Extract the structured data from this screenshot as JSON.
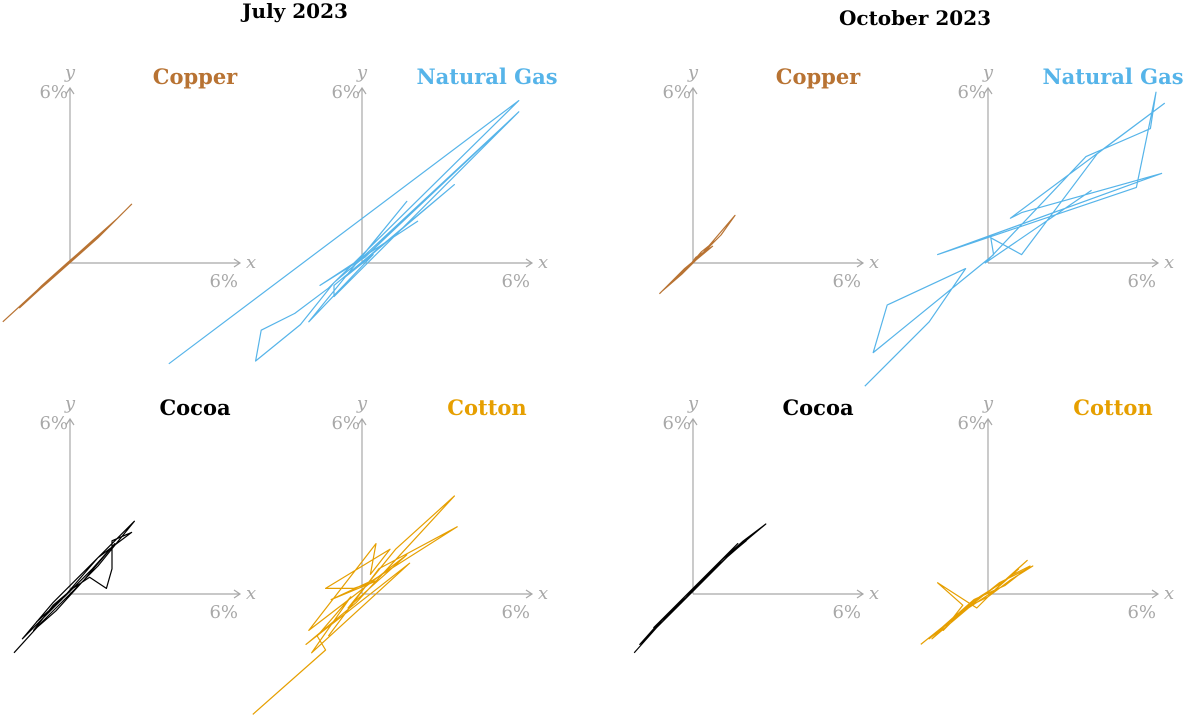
{
  "panels": [
    {
      "title": "July 2023",
      "charts": [
        {
          "type": "line",
          "series_name": "Copper",
          "color": "#b87333",
          "xlabel": "x",
          "ylabel": "y",
          "x_tick": "6%",
          "y_tick": "6%",
          "x_tick_value": 6,
          "y_tick_value": 6,
          "points": [
            [
              -2.4,
              -2.1
            ],
            [
              -1.2,
              -1.0
            ],
            [
              -0.3,
              -0.2
            ],
            [
              0.5,
              0.5
            ],
            [
              1.4,
              1.3
            ],
            [
              2.2,
              2.1
            ],
            [
              1.6,
              1.5
            ],
            [
              0.7,
              0.7
            ],
            [
              -0.1,
              0.0
            ],
            [
              -1.0,
              -0.8
            ],
            [
              -1.8,
              -1.6
            ],
            [
              -0.6,
              -0.5
            ],
            [
              0.3,
              0.3
            ],
            [
              1.1,
              1.0
            ],
            [
              1.9,
              1.8
            ],
            [
              1.0,
              0.9
            ],
            [
              0.1,
              0.1
            ],
            [
              -0.8,
              -0.7
            ],
            [
              -1.5,
              -1.3
            ],
            [
              -0.2,
              -0.1
            ],
            [
              0.8,
              0.8
            ],
            [
              1.7,
              1.6
            ],
            [
              0.6,
              0.6
            ],
            [
              -0.4,
              -0.3
            ]
          ]
        },
        {
          "type": "line",
          "series_name": "Natural Gas",
          "color": "#56b4e9",
          "xlabel": "x",
          "ylabel": "y",
          "x_tick": "6%",
          "y_tick": "6%",
          "x_tick_value": 6,
          "y_tick_value": 6,
          "points": [
            [
              -6.9,
              -3.6
            ],
            [
              5.6,
              5.8
            ],
            [
              -1.2,
              -0.9
            ],
            [
              -2.4,
              -1.8
            ],
            [
              -3.6,
              -2.4
            ],
            [
              -3.8,
              -3.5
            ],
            [
              -2.2,
              -2.2
            ],
            [
              -1.0,
              -0.7
            ],
            [
              0.3,
              0.4
            ],
            [
              5.6,
              5.4
            ],
            [
              -1.0,
              -1.2
            ],
            [
              -1.0,
              -0.8
            ],
            [
              3.3,
              2.8
            ],
            [
              -0.6,
              -0.5
            ],
            [
              0.4,
              0.3
            ],
            [
              -1.9,
              -2.1
            ],
            [
              1.6,
              2.2
            ],
            [
              -0.2,
              0.0
            ],
            [
              5.5,
              5.3
            ],
            [
              0.1,
              0.2
            ],
            [
              -1.5,
              -0.8
            ],
            [
              2.0,
              1.5
            ]
          ]
        },
        {
          "type": "line",
          "series_name": "Cocoa",
          "color": "#000000",
          "xlabel": "x",
          "ylabel": "y",
          "x_tick": "6%",
          "y_tick": "6%",
          "x_tick_value": 6,
          "y_tick_value": 6,
          "points": [
            [
              -2.0,
              -2.1
            ],
            [
              -1.0,
              -1.0
            ],
            [
              0.0,
              0.0
            ],
            [
              1.0,
              1.0
            ],
            [
              2.3,
              2.6
            ],
            [
              0.9,
              1.2
            ],
            [
              -0.6,
              -0.3
            ],
            [
              -1.7,
              -1.6
            ],
            [
              -0.3,
              -0.2
            ],
            [
              1.0,
              1.3
            ],
            [
              2.2,
              2.2
            ],
            [
              1.5,
              1.9
            ],
            [
              1.5,
              0.9
            ],
            [
              1.3,
              0.2
            ],
            [
              0.7,
              0.6
            ],
            [
              0.1,
              0.2
            ],
            [
              -0.6,
              -0.4
            ],
            [
              -1.3,
              -1.3
            ],
            [
              -0.5,
              -0.6
            ],
            [
              0.5,
              0.5
            ],
            [
              1.6,
              1.8
            ],
            [
              0.8,
              0.9
            ],
            [
              -0.2,
              -0.1
            ],
            [
              -1.2,
              -1.0
            ]
          ]
        },
        {
          "type": "line",
          "series_name": "Cotton",
          "color": "#e69f00",
          "xlabel": "x",
          "ylabel": "y",
          "x_tick": "6%",
          "y_tick": "6%",
          "x_tick_value": 6,
          "y_tick_value": 6,
          "points": [
            [
              -3.9,
              -4.3
            ],
            [
              -1.3,
              -2.0
            ],
            [
              -1.6,
              -1.5
            ],
            [
              -0.4,
              -0.1
            ],
            [
              -1.8,
              -2.1
            ],
            [
              1.7,
              1.1
            ],
            [
              -2.0,
              -1.8
            ],
            [
              -0.2,
              -0.3
            ],
            [
              3.3,
              3.5
            ],
            [
              1.2,
              1.6
            ],
            [
              -0.5,
              -0.5
            ],
            [
              -0.4,
              -0.4
            ],
            [
              1.6,
              1.4
            ],
            [
              -0.6,
              -0.3
            ],
            [
              -1.9,
              -1.3
            ],
            [
              0.5,
              1.8
            ],
            [
              0.3,
              0.7
            ],
            [
              1.0,
              1.6
            ],
            [
              -1.3,
              0.2
            ],
            [
              -0.3,
              0.2
            ],
            [
              0.6,
              0.5
            ],
            [
              -1.1,
              -0.2
            ],
            [
              0.4,
              0.5
            ],
            [
              3.4,
              2.4
            ],
            [
              0.6,
              0.9
            ],
            [
              -1.2,
              -1.5
            ]
          ]
        }
      ]
    },
    {
      "title": "October 2023",
      "charts": [
        {
          "type": "line",
          "series_name": "Copper",
          "color": "#b87333",
          "xlabel": "x",
          "ylabel": "y",
          "x_tick": "6%",
          "y_tick": "6%",
          "x_tick_value": 6,
          "y_tick_value": 6,
          "points": [
            [
              -1.2,
              -1.1
            ],
            [
              -0.6,
              -0.5
            ],
            [
              0.0,
              0.0
            ],
            [
              0.6,
              0.6
            ],
            [
              1.0,
              1.0
            ],
            [
              1.5,
              1.7
            ],
            [
              0.9,
              1.0
            ],
            [
              0.3,
              0.3
            ],
            [
              -0.3,
              -0.2
            ],
            [
              -0.9,
              -0.8
            ],
            [
              -0.3,
              -0.3
            ],
            [
              0.3,
              0.4
            ],
            [
              0.8,
              0.8
            ],
            [
              0.2,
              0.2
            ],
            [
              -0.4,
              -0.4
            ],
            [
              -1.1,
              -1.0
            ],
            [
              -0.5,
              -0.4
            ],
            [
              0.1,
              0.1
            ],
            [
              0.7,
              0.6
            ],
            [
              0.1,
              0.2
            ],
            [
              -0.2,
              -0.2
            ]
          ]
        },
        {
          "type": "line",
          "series_name": "Natural Gas",
          "color": "#56b4e9",
          "xlabel": "x",
          "ylabel": "y",
          "x_tick": "6%",
          "y_tick": "6%",
          "x_tick_value": 6,
          "y_tick_value": 6,
          "points": [
            [
              -4.4,
              -4.4
            ],
            [
              -2.1,
              -2.1
            ],
            [
              -0.8,
              -0.2
            ],
            [
              -3.6,
              -1.5
            ],
            [
              -4.1,
              -3.2
            ],
            [
              0.2,
              0.3
            ],
            [
              0.1,
              0.9
            ],
            [
              1.2,
              0.3
            ],
            [
              3.9,
              3.9
            ],
            [
              6.3,
              5.7
            ],
            [
              0.8,
              1.6
            ],
            [
              1.2,
              1.8
            ],
            [
              6.2,
              3.2
            ],
            [
              -1.8,
              0.3
            ],
            [
              5.3,
              2.7
            ],
            [
              6.0,
              6.1
            ],
            [
              5.8,
              4.8
            ],
            [
              3.5,
              3.8
            ],
            [
              -0.1,
              0.0
            ],
            [
              3.7,
              2.6
            ]
          ]
        },
        {
          "type": "line",
          "series_name": "Cocoa",
          "color": "#000000",
          "xlabel": "x",
          "ylabel": "y",
          "x_tick": "6%",
          "y_tick": "6%",
          "x_tick_value": 6,
          "y_tick_value": 6,
          "points": [
            [
              -2.1,
              -2.1
            ],
            [
              -1.3,
              -1.2
            ],
            [
              -0.4,
              -0.3
            ],
            [
              0.5,
              0.6
            ],
            [
              1.4,
              1.5
            ],
            [
              2.6,
              2.5
            ],
            [
              1.8,
              1.9
            ],
            [
              0.9,
              1.1
            ],
            [
              0.0,
              0.1
            ],
            [
              -0.9,
              -0.7
            ],
            [
              -1.6,
              -1.5
            ],
            [
              -0.7,
              -0.6
            ],
            [
              0.2,
              0.3
            ],
            [
              1.1,
              1.3
            ],
            [
              2.0,
              2.0
            ],
            [
              1.2,
              1.3
            ],
            [
              0.3,
              0.5
            ],
            [
              -0.6,
              -0.4
            ],
            [
              -1.4,
              -1.2
            ],
            [
              -0.5,
              -0.4
            ],
            [
              0.4,
              0.6
            ],
            [
              1.5,
              1.7
            ],
            [
              0.7,
              0.9
            ],
            [
              -0.2,
              0.0
            ],
            [
              -1.1,
              -0.9
            ],
            [
              -1.9,
              -1.8
            ],
            [
              -0.8,
              -0.7
            ],
            [
              0.1,
              0.2
            ],
            [
              1.0,
              1.2
            ],
            [
              1.9,
              1.9
            ],
            [
              1.3,
              1.4
            ],
            [
              0.4,
              0.5
            ],
            [
              -0.3,
              -0.2
            ],
            [
              -1.2,
              -1.0
            ],
            [
              -0.4,
              -0.2
            ],
            [
              0.6,
              0.8
            ],
            [
              1.6,
              1.8
            ],
            [
              0.8,
              1.0
            ],
            [
              -0.1,
              0.1
            ],
            [
              -1.0,
              -0.8
            ]
          ]
        },
        {
          "type": "line",
          "series_name": "Cotton",
          "color": "#e69f00",
          "xlabel": "x",
          "ylabel": "y",
          "x_tick": "6%",
          "y_tick": "6%",
          "x_tick_value": 6,
          "y_tick_value": 6,
          "points": [
            [
              -2.4,
              -1.8
            ],
            [
              -1.4,
              -1.0
            ],
            [
              -0.6,
              -0.4
            ],
            [
              0.4,
              0.4
            ],
            [
              1.2,
              0.8
            ],
            [
              1.6,
              1.0
            ],
            [
              0.8,
              0.5
            ],
            [
              0.0,
              -0.1
            ],
            [
              -0.8,
              -0.5
            ],
            [
              -1.6,
              -1.3
            ],
            [
              -0.9,
              -0.4
            ],
            [
              -1.8,
              0.4
            ],
            [
              -0.4,
              -0.5
            ],
            [
              0.3,
              0.2
            ],
            [
              1.4,
              1.2
            ],
            [
              0.5,
              0.4
            ],
            [
              -0.3,
              -0.1
            ],
            [
              -1.2,
              -0.8
            ],
            [
              -2.1,
              -1.6
            ],
            [
              -1.0,
              -0.7
            ],
            [
              -0.1,
              0.0
            ],
            [
              0.9,
              0.7
            ],
            [
              1.5,
              1.0
            ],
            [
              0.6,
              0.3
            ],
            [
              -0.5,
              -0.2
            ],
            [
              -1.3,
              -0.9
            ],
            [
              -2.0,
              -1.6
            ],
            [
              -0.7,
              -0.5
            ],
            [
              0.2,
              0.1
            ],
            [
              1.1,
              0.9
            ]
          ]
        }
      ]
    }
  ]
}
